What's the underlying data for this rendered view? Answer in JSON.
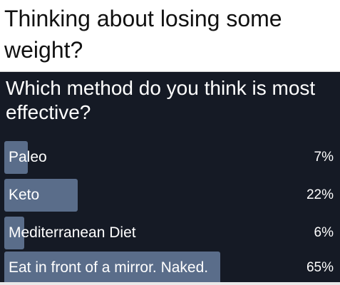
{
  "header": {
    "title": "Thinking about losing some weight?"
  },
  "poll": {
    "question": "Which method do you think is most effective?",
    "bar_color": "#5a6d8a",
    "background_color": "#151a25",
    "options": [
      {
        "label": "Paleo",
        "percent_text": "7%",
        "percent": 7
      },
      {
        "label": "Keto",
        "percent_text": "22%",
        "percent": 22
      },
      {
        "label": "Mediterranean Diet",
        "percent_text": "6%",
        "percent": 6
      },
      {
        "label": "Eat in front of a mirror. Naked.",
        "percent_text": "65%",
        "percent": 65
      }
    ]
  }
}
